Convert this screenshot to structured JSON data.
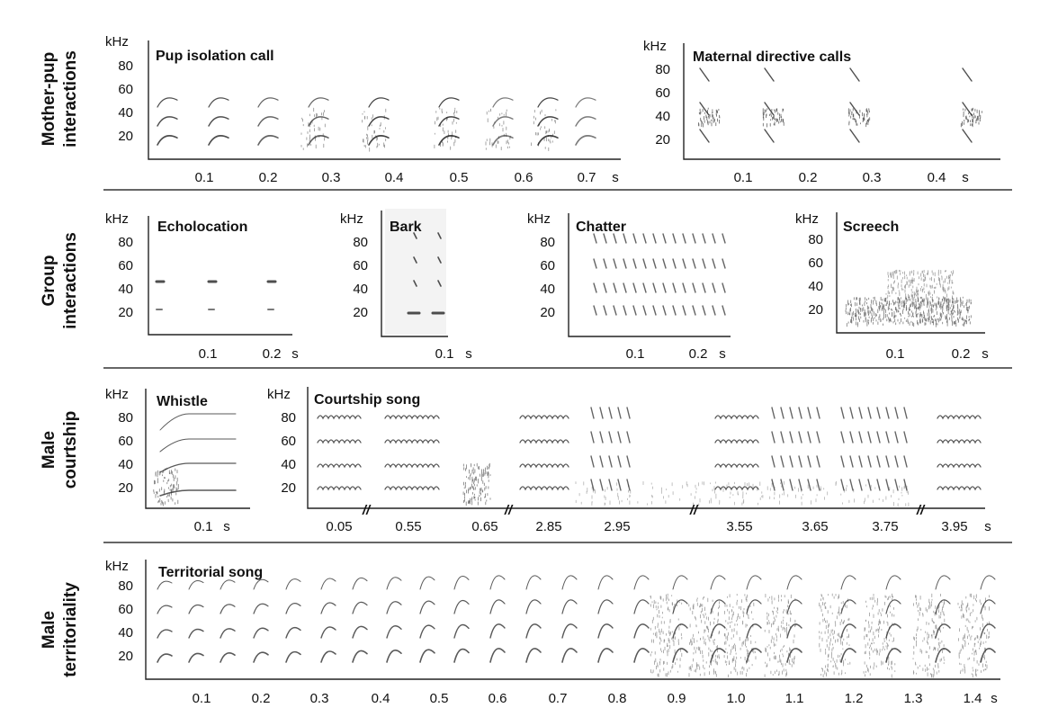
{
  "rows": {
    "r1": [
      "Mother-pup",
      "interactions"
    ],
    "r2": [
      "Group",
      "interactions"
    ],
    "r3": [
      "Male",
      "courtship"
    ],
    "r4": [
      "Male",
      "territoriality"
    ]
  },
  "unit_khz": "kHz",
  "unit_s": "s",
  "panels": {
    "pup": {
      "title": "Pup isolation call",
      "y_ticks": [
        "80",
        "60",
        "40",
        "20"
      ],
      "x_ticks": [
        "0.1",
        "0.2",
        "0.3",
        "0.4",
        "0.5",
        "0.6",
        "0.7"
      ]
    },
    "maternal": {
      "title": "Maternal directive calls",
      "y_ticks": [
        "80",
        "60",
        "40",
        "20"
      ],
      "x_ticks": [
        "0.1",
        "0.2",
        "0.3",
        "0.4"
      ]
    },
    "echo": {
      "title": "Echolocation",
      "y_ticks": [
        "80",
        "60",
        "40",
        "20"
      ],
      "x_ticks": [
        "0.1",
        "0.2"
      ]
    },
    "bark": {
      "title": "Bark",
      "y_ticks": [
        "80",
        "60",
        "40",
        "20"
      ],
      "x_ticks": [
        "0.1"
      ]
    },
    "chatter": {
      "title": "Chatter",
      "y_ticks": [
        "80",
        "60",
        "40",
        "20"
      ],
      "x_ticks": [
        "0.1",
        "0.2"
      ]
    },
    "screech": {
      "title": "Screech",
      "y_ticks": [
        "80",
        "60",
        "40",
        "20"
      ],
      "x_ticks": [
        "0.1",
        "0.2"
      ]
    },
    "whistle": {
      "title": "Whistle",
      "y_ticks": [
        "80",
        "60",
        "40",
        "20"
      ],
      "x_ticks": [
        "0.1"
      ]
    },
    "courtship": {
      "title": "Courtship song",
      "y_ticks": [
        "80",
        "60",
        "40",
        "20"
      ],
      "x_ticks": [
        "0.05",
        "0.55",
        "0.65",
        "2.85",
        "2.95",
        "3.55",
        "3.65",
        "3.75",
        "3.95"
      ],
      "break_mark": "//"
    },
    "territorial": {
      "title": "Territorial song",
      "y_ticks": [
        "80",
        "60",
        "40",
        "20"
      ],
      "x_ticks": [
        "0.1",
        "0.2",
        "0.3",
        "0.4",
        "0.5",
        "0.6",
        "0.7",
        "0.8",
        "0.9",
        "1.0",
        "1.1",
        "1.2",
        "1.3",
        "1.4"
      ]
    }
  }
}
